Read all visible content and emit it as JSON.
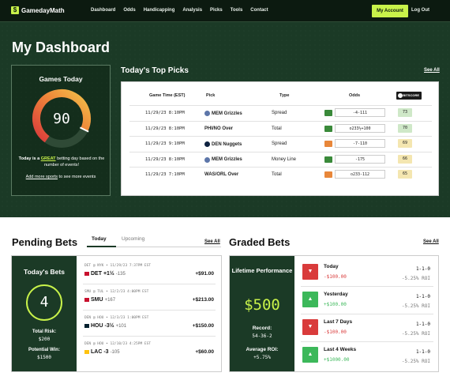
{
  "nav": {
    "logo": "GamedayMath",
    "links": [
      "Dashboard",
      "Odds",
      "Handicapping",
      "Analysis",
      "Picks",
      "Tools",
      "Contact"
    ],
    "account": "My Account",
    "logout": "Log Out"
  },
  "page_title": "My Dashboard",
  "games_today": {
    "title": "Games Today",
    "value": "90",
    "gauge_fraction": 0.9,
    "desc_pre": "Today is a ",
    "desc_highlight": "GREAT",
    "desc_post": " betting day based on the number of events!",
    "more_link": "Add more sports",
    "more_post": " to see more events"
  },
  "top_picks": {
    "title": "Today's Top Picks",
    "see_all": "See All",
    "headers": {
      "time": "Game Time (EST)",
      "pick": "Pick",
      "type": "Type",
      "odds": "Odds",
      "score": "BITSCORE"
    },
    "rows": [
      {
        "time": "11/29/23 8:10PM",
        "pick": "MEM Grizzles",
        "type": "Spread",
        "odds": "-4-111",
        "score": "73",
        "book_color": "#3a8a3a",
        "score_color": "#cfe8c8",
        "team_color": "#5d76a9"
      },
      {
        "time": "11/29/23 8:10PM",
        "pick": "PHI/NO Over",
        "type": "Total",
        "odds": "o233½+100",
        "score": "70",
        "book_color": "#3a8a3a",
        "score_color": "#cfe8c8",
        "team_color": ""
      },
      {
        "time": "11/29/23 9:10PM",
        "pick": "DEN Nuggets",
        "type": "Spread",
        "odds": "-7-110",
        "score": "69",
        "book_color": "#e8873a",
        "score_color": "#f4e6b0",
        "team_color": "#0e2240"
      },
      {
        "time": "11/29/23 8:10PM",
        "pick": "MEM Grizzles",
        "type": "Money Line",
        "odds": "-175",
        "score": "66",
        "book_color": "#3a8a3a",
        "score_color": "#f4e6b0",
        "team_color": "#5d76a9"
      },
      {
        "time": "11/29/23 7:10PM",
        "pick": "WAS/ORL Over",
        "type": "Total",
        "odds": "o233-112",
        "score": "65",
        "book_color": "#e8873a",
        "score_color": "#f4e6b0",
        "team_color": ""
      }
    ]
  },
  "pending": {
    "title": "Pending Bets",
    "tabs": [
      "Today",
      "Upcoming"
    ],
    "see_all": "See All",
    "summary": {
      "title": "Today's Bets",
      "count": "4",
      "risk_label": "Total Risk:",
      "risk_value": "$200",
      "win_label": "Potential Win:",
      "win_value": "$1500"
    },
    "bets": [
      {
        "meta": "DET @ NYK • 11/29/23 7:37PM EST",
        "pick": "DET +1½",
        "odds": "-135",
        "amount": "+$91.00",
        "color": "#c8102e"
      },
      {
        "meta": "SMU @ TUL • 12/2/23 4:00PM EST",
        "pick": "SMU",
        "odds": "+167",
        "amount": "+$213.00",
        "color": "#c8102e"
      },
      {
        "meta": "DEN @ HOU • 12/3/23 1:00PM EST",
        "pick": "HOU -3½",
        "odds": "+101",
        "amount": "+$150.00",
        "color": "#03202f"
      },
      {
        "meta": "DEN @ HOU • 12/10/23 4:25PM EST",
        "pick": "LAC -3",
        "odds": "-105",
        "amount": "+$60.00",
        "color": "#ffc20e"
      }
    ]
  },
  "graded": {
    "title": "Graded Bets",
    "see_all": "See All",
    "summary": {
      "title": "Lifetime Performance",
      "amount": "$500",
      "record_label": "Record:",
      "record_value": "54-36-2",
      "roi_label": "Average ROI:",
      "roi_value": "+5.75%"
    },
    "rows": [
      {
        "label": "Today",
        "amount": "-$100.00",
        "record": "1-1-0",
        "roi": "-5.25% ROI",
        "result": "loss"
      },
      {
        "label": "Yesterday",
        "amount": "+$100.00",
        "record": "1-1-0",
        "roi": "-5.25% ROI",
        "result": "win"
      },
      {
        "label": "Last 7 Days",
        "amount": "-$100.00",
        "record": "1-1-0",
        "roi": "-5.25% ROI",
        "result": "loss"
      },
      {
        "label": "Last 4 Weeks",
        "amount": "+$1000.00",
        "record": "1-1-0",
        "roi": "-5.25% ROI",
        "result": "win"
      }
    ]
  },
  "colors": {
    "brand_green": "#1b3a26",
    "accent": "#c8f24a",
    "loss": "#d93b3b",
    "win": "#3cb85a"
  }
}
